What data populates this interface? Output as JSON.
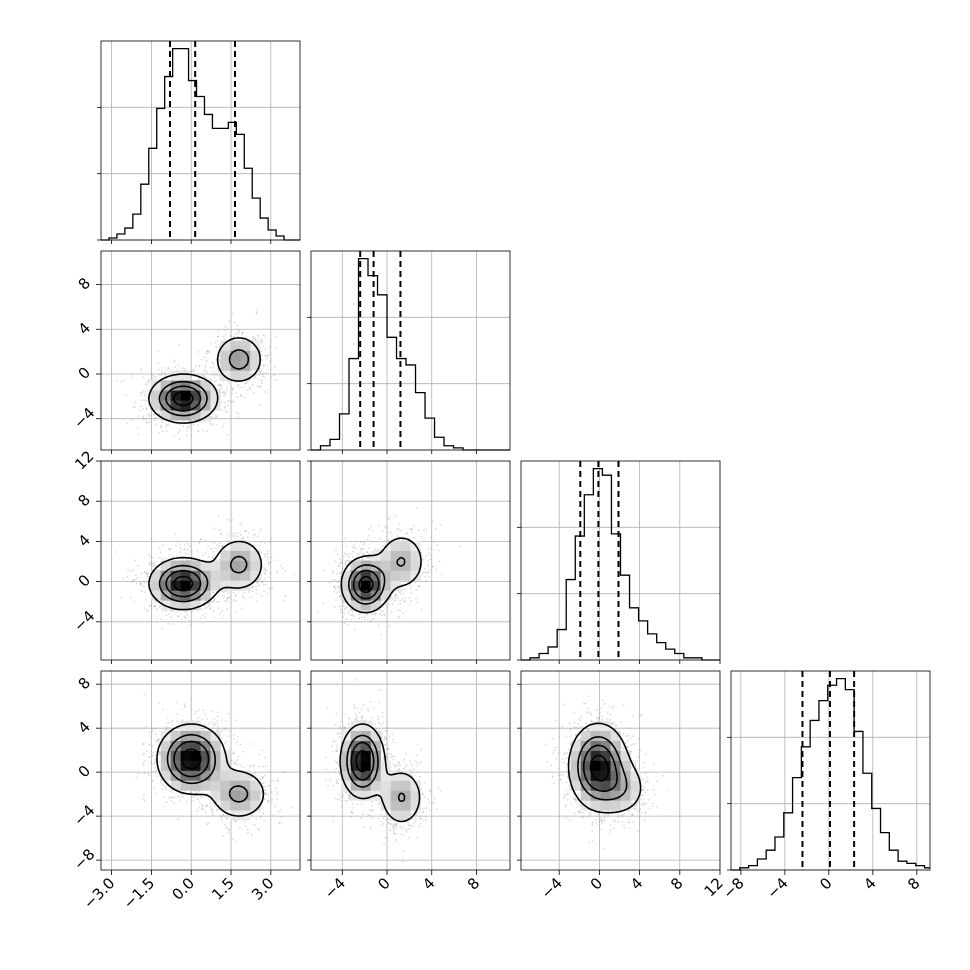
{
  "chart_data": {
    "type": "corner",
    "n_params": 4,
    "labels": [
      "",
      "",
      "",
      ""
    ],
    "ranges": [
      [
        -3.4,
        4.1
      ],
      [
        -6.8,
        11.0
      ],
      [
        -7.8,
        12.0
      ],
      [
        -8.9,
        9.2
      ]
    ],
    "ticks": [
      [
        -3.0,
        -1.5,
        0.0,
        1.5,
        3.0
      ],
      [
        -4,
        0,
        4,
        8
      ],
      [
        -4,
        0,
        4,
        8,
        12
      ],
      [
        -8,
        -4,
        0,
        4,
        8
      ]
    ],
    "tick_labels": [
      [
        "−3.0",
        "−1.5",
        "0.0",
        "1.5",
        "3.0"
      ],
      [
        "−4",
        "0",
        "4",
        "8"
      ],
      [
        "−4",
        "0",
        "4",
        "8",
        "12"
      ],
      [
        "−8",
        "−4",
        "0",
        "4",
        "8"
      ]
    ],
    "grid": true,
    "quantiles": [
      [
        -0.8,
        0.15,
        1.65
      ],
      [
        -2.4,
        -1.2,
        1.2
      ],
      [
        -1.9,
        -0.1,
        1.9
      ],
      [
        -2.4,
        0.1,
        2.3
      ]
    ],
    "histograms": [
      {
        "edges": [
          -3.4,
          -3.1,
          -2.8,
          -2.5,
          -2.2,
          -1.9,
          -1.6,
          -1.3,
          -1.0,
          -0.7,
          -0.4,
          -0.1,
          0.2,
          0.5,
          0.8,
          1.1,
          1.4,
          1.7,
          2.0,
          2.3,
          2.6,
          2.9,
          3.2,
          3.5,
          3.8,
          4.1
        ],
        "counts": [
          0,
          1,
          3,
          6,
          13,
          28,
          46,
          66,
          82,
          96,
          96,
          80,
          72,
          63,
          56,
          56,
          59,
          53,
          36,
          21,
          11,
          5,
          2,
          0,
          0
        ]
      },
      {
        "edges": [
          -6.8,
          -5.95,
          -5.1,
          -4.25,
          -3.4,
          -2.55,
          -1.7,
          -0.85,
          0.0,
          0.85,
          1.7,
          2.55,
          3.4,
          4.25,
          5.1,
          5.95,
          6.8,
          7.65,
          8.5,
          9.35,
          10.2,
          11.0
        ],
        "counts": [
          0,
          2,
          5,
          17,
          43,
          90,
          82,
          73,
          53,
          43,
          40,
          27,
          15,
          6,
          2,
          1,
          0,
          0,
          0,
          0,
          0
        ]
      },
      {
        "edges": [
          -7.8,
          -6.9,
          -6.0,
          -5.1,
          -4.2,
          -3.3,
          -2.4,
          -1.5,
          -0.6,
          0.3,
          1.2,
          2.1,
          3.0,
          3.9,
          4.8,
          5.7,
          6.6,
          7.5,
          8.4,
          9.3,
          10.2,
          11.1,
          12.0
        ],
        "counts": [
          0,
          1,
          3,
          6,
          14,
          37,
          57,
          76,
          88,
          85,
          58,
          39,
          24,
          18,
          12,
          8,
          5,
          3,
          1,
          1,
          0,
          0
        ]
      },
      {
        "edges": [
          -8.9,
          -8.1,
          -7.3,
          -6.5,
          -5.7,
          -4.9,
          -4.1,
          -3.3,
          -2.5,
          -1.7,
          -0.9,
          -0.1,
          0.7,
          1.5,
          2.3,
          3.1,
          3.9,
          4.7,
          5.5,
          6.3,
          7.1,
          7.9,
          8.7,
          9.2
        ],
        "counts": [
          0,
          1,
          2,
          5,
          9,
          15,
          26,
          42,
          56,
          68,
          77,
          84,
          87,
          82,
          63,
          44,
          28,
          17,
          9,
          4,
          3,
          2,
          1
        ]
      }
    ],
    "density_modes": [
      {
        "pair": [
          1,
          0
        ],
        "modes": [
          {
            "x": -0.3,
            "y": -2.2,
            "sx": 0.65,
            "sy": 1.1,
            "w": 1.0
          },
          {
            "x": 1.8,
            "y": 1.3,
            "sx": 0.5,
            "sy": 1.2,
            "w": 0.5
          }
        ]
      },
      {
        "pair": [
          2,
          0
        ],
        "modes": [
          {
            "x": -0.3,
            "y": -0.2,
            "sx": 0.65,
            "sy": 1.3,
            "w": 1.0
          },
          {
            "x": 1.8,
            "y": 1.7,
            "sx": 0.55,
            "sy": 1.5,
            "w": 0.45
          }
        ]
      },
      {
        "pair": [
          2,
          1
        ],
        "modes": [
          {
            "x": -1.9,
            "y": -0.3,
            "sx": 1.1,
            "sy": 1.4,
            "w": 1.0
          },
          {
            "x": 1.3,
            "y": 2.0,
            "sx": 1.2,
            "sy": 1.6,
            "w": 0.4
          }
        ]
      },
      {
        "pair": [
          3,
          0
        ],
        "modes": [
          {
            "x": 0.0,
            "y": 1.2,
            "sx": 0.65,
            "sy": 1.6,
            "w": 1.0
          },
          {
            "x": 1.8,
            "y": -2.0,
            "sx": 0.6,
            "sy": 1.3,
            "w": 0.45
          }
        ]
      },
      {
        "pair": [
          3,
          1
        ],
        "modes": [
          {
            "x": -2.2,
            "y": 1.0,
            "sx": 1.0,
            "sy": 1.7,
            "w": 1.0
          },
          {
            "x": 1.3,
            "y": -2.3,
            "sx": 1.1,
            "sy": 1.5,
            "w": 0.4
          }
        ]
      },
      {
        "pair": [
          3,
          2
        ],
        "modes": [
          {
            "x": -0.1,
            "y": 0.5,
            "sx": 1.5,
            "sy": 2.0,
            "w": 1.0
          },
          {
            "x": 2.3,
            "y": -1.5,
            "sx": 1.4,
            "sy": 1.4,
            "w": 0.3
          }
        ]
      }
    ]
  }
}
